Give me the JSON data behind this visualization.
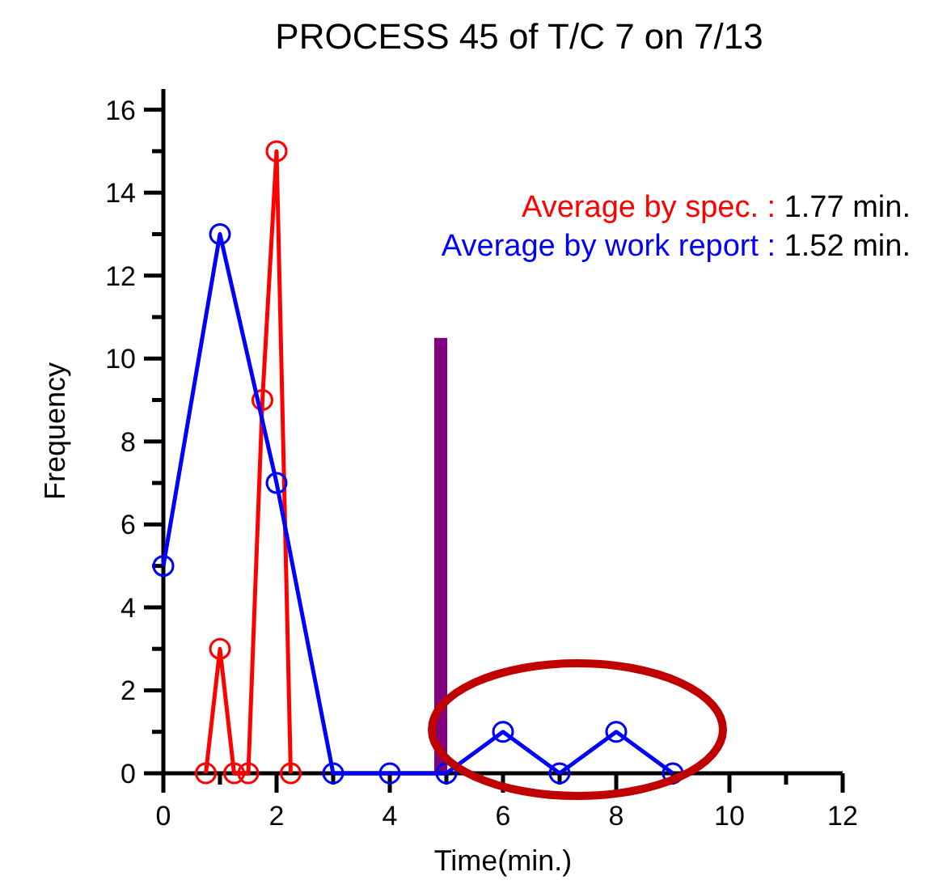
{
  "chart_data": {
    "type": "line",
    "title": "PROCESS 45 of T/C 7 on 7/13",
    "xlabel": "Time(min.)",
    "ylabel": "Frequency",
    "series": [
      {
        "color": "#ff0000",
        "x": [
          0.75,
          1,
          1.25,
          1.5,
          1.75,
          2,
          2.25
        ],
        "values": [
          0,
          3,
          0,
          0,
          9,
          15,
          0
        ]
      },
      {
        "color": "#0000ff",
        "x": [
          0,
          1,
          2,
          3,
          4,
          5,
          6,
          7,
          8,
          9
        ],
        "values": [
          5,
          13,
          7,
          0,
          0,
          0,
          1,
          0,
          1,
          0
        ]
      }
    ],
    "annotations": [
      "Average by spec. : 1.77 min.",
      "Average by work report : 1.52 min."
    ],
    "ref_lines": [
      {
        "axis": "x",
        "value": 4.9,
        "color": "#800080"
      }
    ],
    "marker": "circle",
    "line_style": "solid",
    "xlim": [
      0,
      12
    ],
    "ylim": [
      0,
      16.5
    ],
    "xticks": [
      0,
      {
        "value": 1,
        "label": null
      },
      2,
      {
        "value": 3,
        "label": null
      },
      4,
      {
        "value": 5,
        "label": null
      },
      6,
      {
        "value": 7,
        "label": null
      },
      8,
      {
        "value": 9,
        "label": null
      },
      10,
      {
        "value": 11,
        "label": null
      },
      12
    ],
    "yticks": [
      0,
      {
        "value": 1,
        "label": null
      },
      2,
      {
        "value": 3,
        "label": null
      },
      4,
      {
        "value": 5,
        "label": null
      },
      6,
      {
        "value": 7,
        "label": null
      },
      8,
      {
        "value": 9,
        "label": null
      },
      10,
      {
        "value": 11,
        "label": null
      },
      12,
      {
        "value": 13,
        "label": null
      },
      14,
      {
        "value": 15,
        "label": null
      },
      16
    ]
  }
}
